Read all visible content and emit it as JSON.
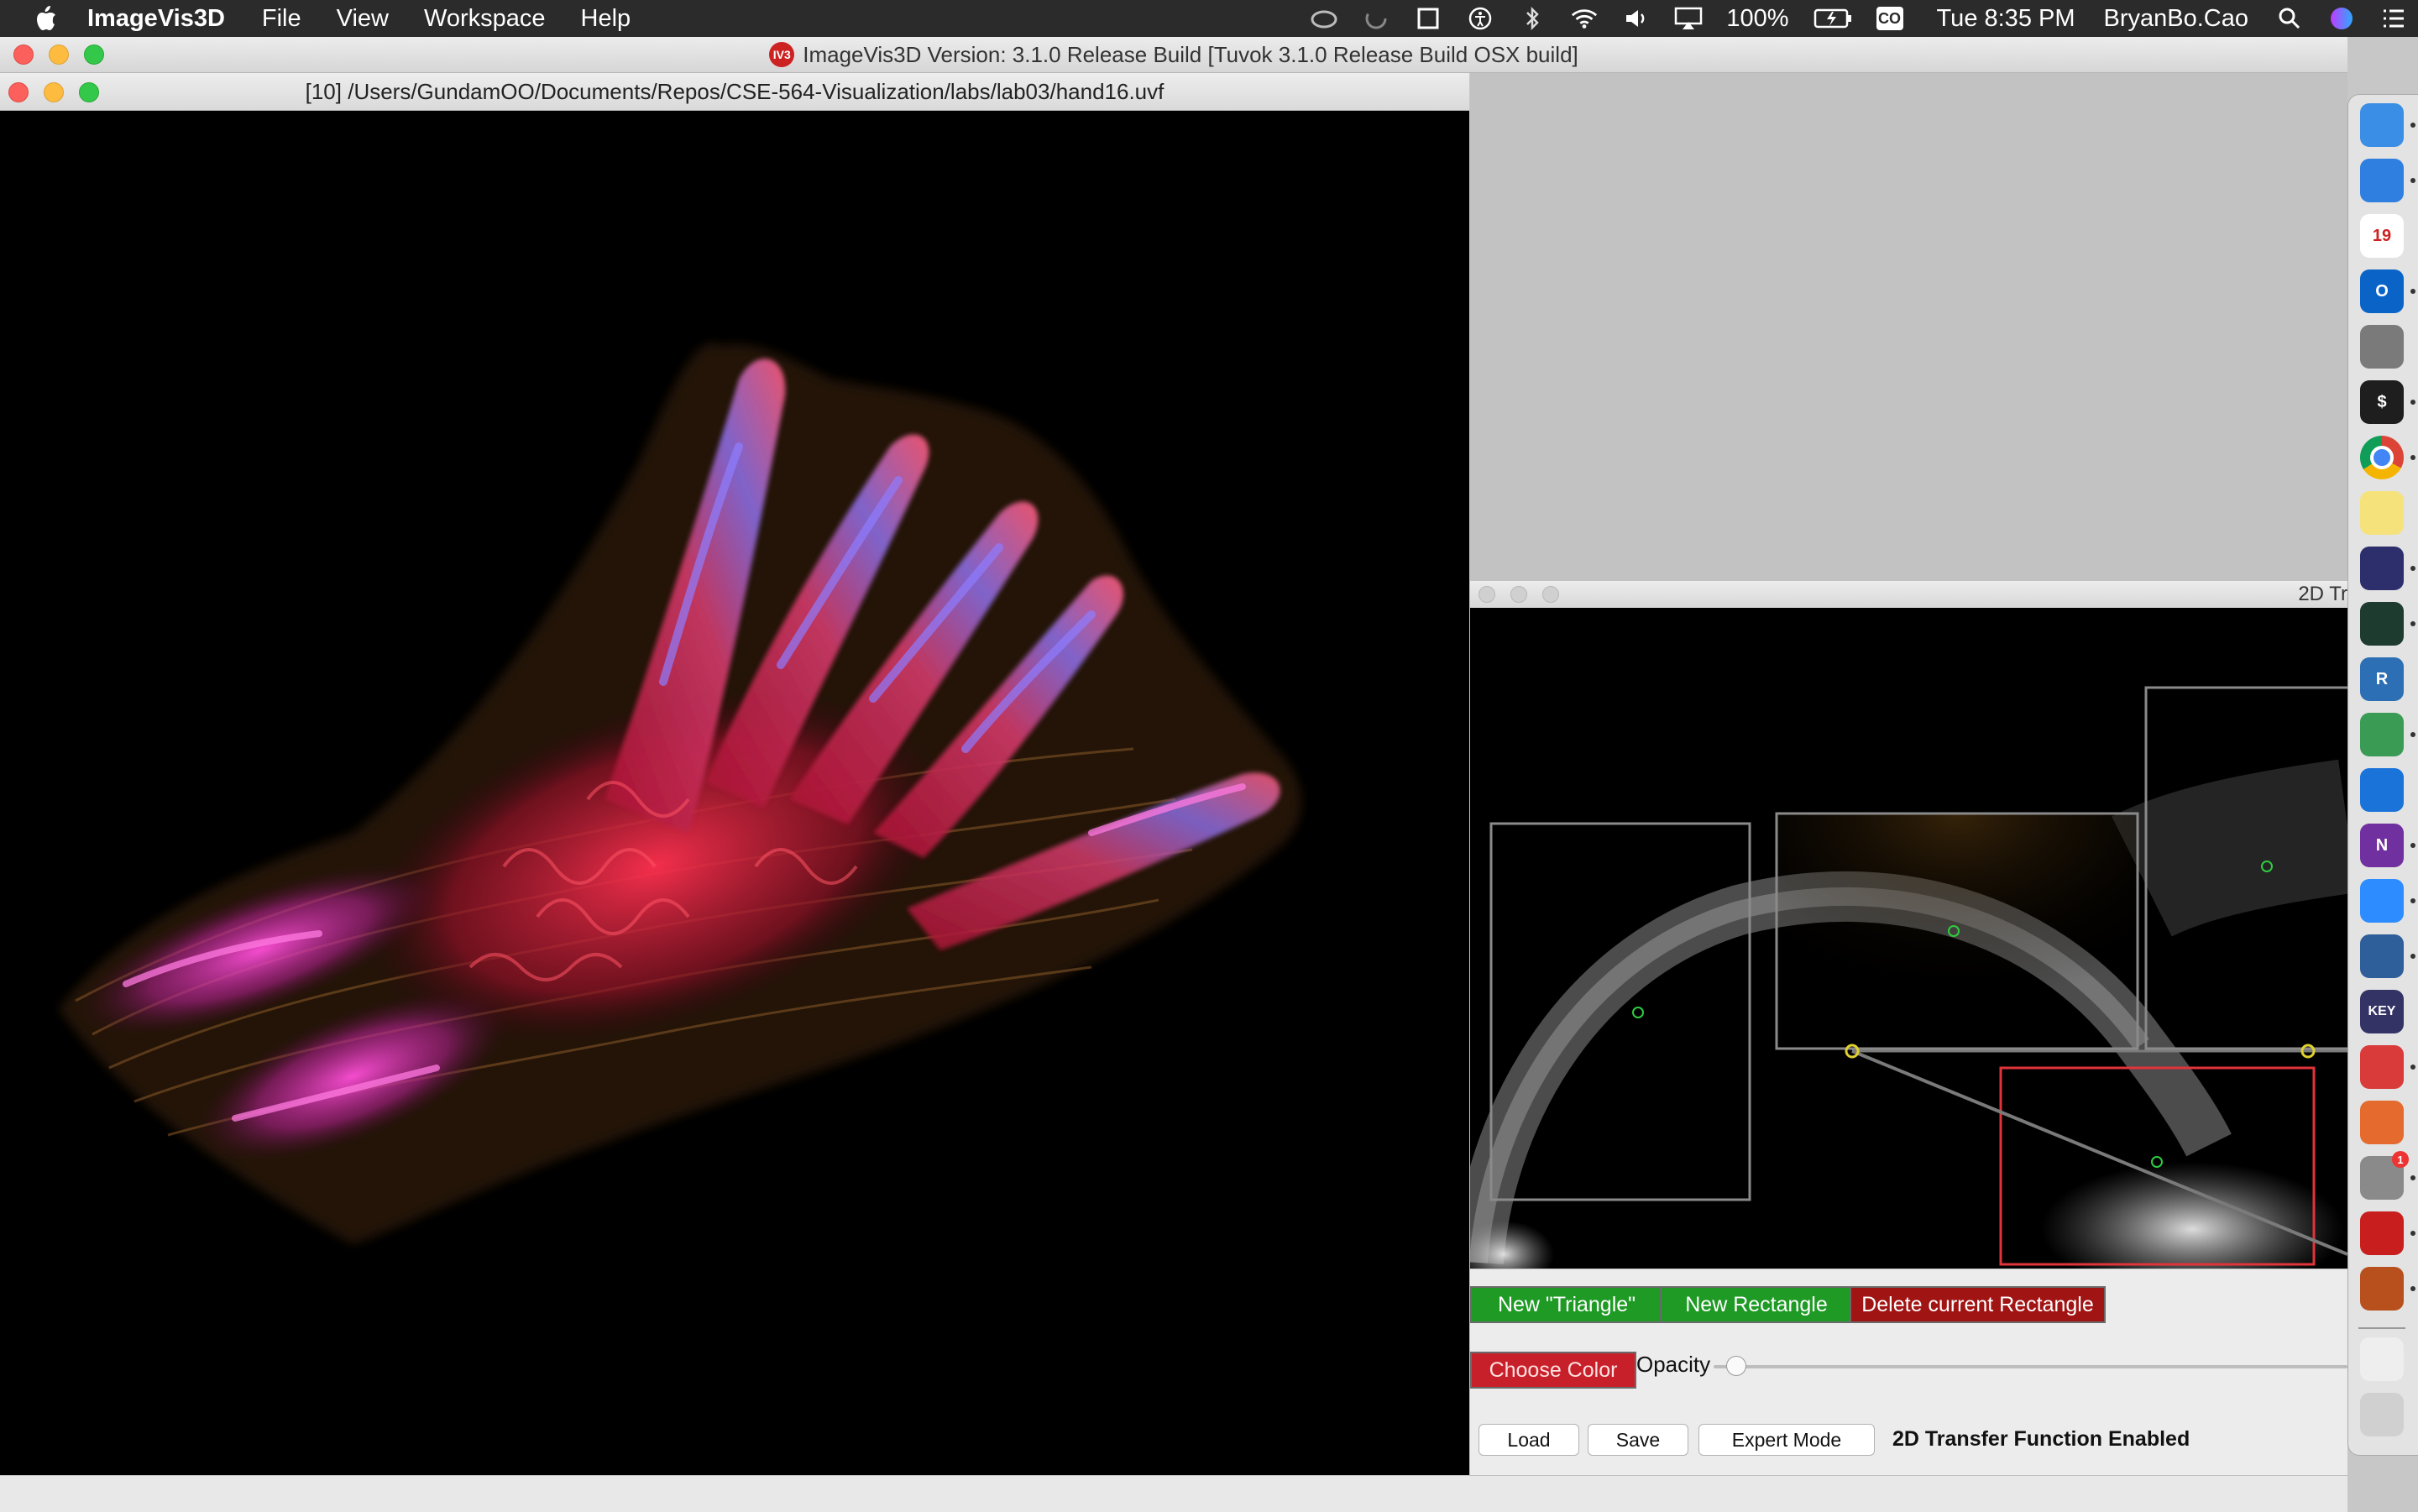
{
  "menubar": {
    "app_name": "ImageVis3D",
    "items": [
      "File",
      "View",
      "Workspace",
      "Help"
    ],
    "battery": "100%",
    "co_badge": "CO",
    "clock": "Tue 8:35 PM",
    "user": "BryanBo.Cao"
  },
  "app_window": {
    "title": "ImageVis3D Version: 3.1.0 Release Build [Tuvok 3.1.0 Release Build OSX build]",
    "logo_text": "IV3"
  },
  "render_window": {
    "title": "[10] /Users/GundamOO/Documents/Repos/CSE-564-Visualization/labs/lab03/hand16.uvf"
  },
  "tf_window": {
    "title": "2D Tr"
  },
  "tf_controls": {
    "new_triangle": "New \"Triangle\"",
    "new_rectangle": "New Rectangle",
    "delete_rectangle": "Delete current Rectangle",
    "choose_color": "Choose Color",
    "opacity_label": "Opacity",
    "opacity_value": 0.02,
    "load": "Load",
    "save": "Save",
    "expert_mode": "Expert Mode",
    "status": "2D Transfer Function Enabled"
  },
  "dock": {
    "items": [
      {
        "name": "finder",
        "color": "#3a8ee6"
      },
      {
        "name": "pen",
        "color": "#2f7fe0"
      },
      {
        "name": "calendar",
        "label": "19",
        "color": "#ffffff"
      },
      {
        "name": "outlook",
        "label": "O",
        "color": "#0a64c8"
      },
      {
        "name": "launchpad",
        "color": "#7a7a7a"
      },
      {
        "name": "terminal",
        "label": "$",
        "color": "#1e1e1e"
      },
      {
        "name": "chrome",
        "color": "#e2c03b"
      },
      {
        "name": "notes",
        "color": "#f6e27a"
      },
      {
        "name": "eclipse",
        "color": "#2c2f6b"
      },
      {
        "name": "activity-monitor",
        "color": "#1d3b2f"
      },
      {
        "name": "r-app",
        "label": "R",
        "color": "#2d6fb5"
      },
      {
        "name": "sync",
        "color": "#3a9b54"
      },
      {
        "name": "teamviewer",
        "color": "#1a73d9"
      },
      {
        "name": "onenote",
        "label": "N",
        "color": "#7030a0"
      },
      {
        "name": "zoom",
        "color": "#2d8cff"
      },
      {
        "name": "quicktime",
        "color": "#2f5f9a"
      },
      {
        "name": "keynote",
        "label": "KEY",
        "color": "#333366"
      },
      {
        "name": "creative-cloud",
        "color": "#d93a3a"
      },
      {
        "name": "colors",
        "color": "#e46b2d"
      },
      {
        "name": "system-preferences",
        "badge": "1",
        "color": "#8a8a8a"
      },
      {
        "name": "acrobat",
        "color": "#c81e1e"
      },
      {
        "name": "imagevis3d",
        "color": "#b8501d"
      },
      {
        "name": "documents",
        "color": "#eeeeee"
      },
      {
        "name": "trash",
        "color": "#d0d0d0"
      }
    ]
  }
}
